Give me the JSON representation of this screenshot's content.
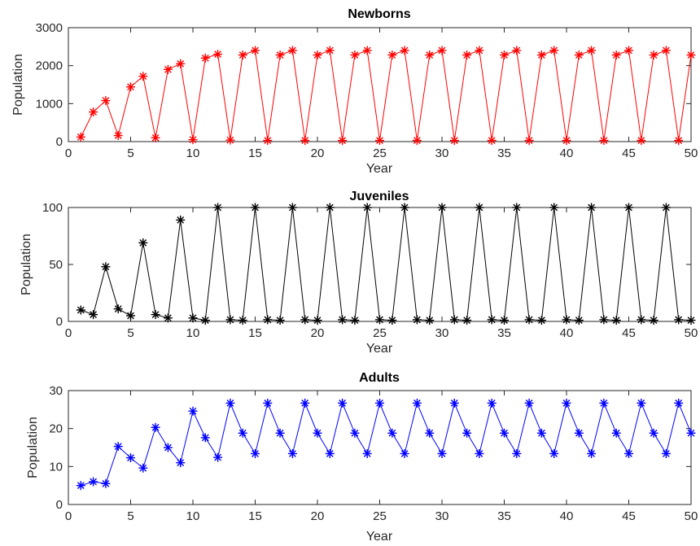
{
  "chart_data": [
    {
      "type": "line",
      "title": "Newborns",
      "xlabel": "Year",
      "ylabel": "Population",
      "xlim": [
        0,
        50
      ],
      "ylim": [
        0,
        3000
      ],
      "xticks": [
        "0",
        "5",
        "10",
        "15",
        "20",
        "25",
        "30",
        "35",
        "40",
        "45",
        "50"
      ],
      "yticks": [
        "0",
        "1000",
        "2000",
        "3000"
      ],
      "grid": false,
      "color": "#ff0000",
      "marker": "asterisk",
      "series": [
        {
          "x": [
            1,
            2,
            3,
            4,
            5,
            6,
            7,
            8,
            9,
            10,
            11,
            12,
            13,
            14,
            15,
            16,
            17,
            18,
            19,
            20,
            21,
            22,
            23,
            24,
            25,
            26,
            27,
            28,
            29,
            30,
            31,
            32,
            33,
            34,
            35,
            36,
            37,
            38,
            39,
            40,
            41,
            42,
            43,
            44,
            45,
            46,
            47,
            48,
            49,
            50
          ],
          "values": [
            120,
            780,
            1080,
            160,
            1440,
            1720,
            100,
            1900,
            2050,
            50,
            2200,
            2300,
            40,
            2280,
            2400,
            30,
            2280,
            2400,
            30,
            2280,
            2400,
            30,
            2280,
            2400,
            30,
            2280,
            2400,
            30,
            2280,
            2400,
            30,
            2280,
            2400,
            30,
            2280,
            2400,
            30,
            2280,
            2400,
            30,
            2280,
            2400,
            30,
            2280,
            2400,
            30,
            2280,
            2400,
            30,
            2280
          ]
        }
      ]
    },
    {
      "type": "line",
      "title": "Juveniles",
      "xlabel": "Year",
      "ylabel": "Population",
      "xlim": [
        0,
        50
      ],
      "ylim": [
        0,
        100
      ],
      "xticks": [
        "0",
        "5",
        "10",
        "15",
        "20",
        "25",
        "30",
        "35",
        "40",
        "45",
        "50"
      ],
      "yticks": [
        "0",
        "50",
        "100"
      ],
      "grid": false,
      "color": "#000000",
      "marker": "asterisk",
      "series": [
        {
          "x": [
            1,
            2,
            3,
            4,
            5,
            6,
            7,
            8,
            9,
            10,
            11,
            12,
            13,
            14,
            15,
            16,
            17,
            18,
            19,
            20,
            21,
            22,
            23,
            24,
            25,
            26,
            27,
            28,
            29,
            30,
            31,
            32,
            33,
            34,
            35,
            36,
            37,
            38,
            39,
            40,
            41,
            42,
            43,
            44,
            45,
            46,
            47,
            48,
            49,
            50
          ],
          "values": [
            10,
            6,
            48,
            11,
            5,
            69,
            6,
            3,
            89,
            3,
            1,
            100,
            1.5,
            1,
            100,
            1.5,
            1,
            100,
            1.5,
            1,
            100,
            1.5,
            1,
            100,
            1.5,
            1,
            100,
            1.5,
            1,
            100,
            1.5,
            1,
            100,
            1.5,
            1,
            100,
            1.5,
            1,
            100,
            1.5,
            1,
            100,
            1.5,
            1,
            100,
            1.5,
            1,
            100,
            1.5,
            1
          ]
        }
      ]
    },
    {
      "type": "line",
      "title": "Adults",
      "xlabel": "Year",
      "ylabel": "Population",
      "xlim": [
        0,
        50
      ],
      "ylim": [
        0,
        30
      ],
      "xticks": [
        "0",
        "5",
        "10",
        "15",
        "20",
        "25",
        "30",
        "35",
        "40",
        "45",
        "50"
      ],
      "yticks": [
        "0",
        "10",
        "20",
        "30"
      ],
      "grid": false,
      "color": "#0000ff",
      "marker": "asterisk",
      "series": [
        {
          "x": [
            1,
            2,
            3,
            4,
            5,
            6,
            7,
            8,
            9,
            10,
            11,
            12,
            13,
            14,
            15,
            16,
            17,
            18,
            19,
            20,
            21,
            22,
            23,
            24,
            25,
            26,
            27,
            28,
            29,
            30,
            31,
            32,
            33,
            34,
            35,
            36,
            37,
            38,
            39,
            40,
            41,
            42,
            43,
            44,
            45,
            46,
            47,
            48,
            49,
            50
          ],
          "values": [
            5,
            6,
            5.5,
            15.3,
            12.3,
            9.6,
            20.3,
            15,
            11,
            24.6,
            17.6,
            12.4,
            26.7,
            18.8,
            13.4,
            26.7,
            18.8,
            13.4,
            26.7,
            18.8,
            13.4,
            26.7,
            18.8,
            13.4,
            26.7,
            18.8,
            13.4,
            26.7,
            18.8,
            13.4,
            26.7,
            18.8,
            13.4,
            26.7,
            18.8,
            13.4,
            26.7,
            18.8,
            13.4,
            26.7,
            18.8,
            13.4,
            26.7,
            18.8,
            13.4,
            26.7,
            18.8,
            13.4,
            26.7,
            18.8
          ]
        }
      ]
    }
  ]
}
